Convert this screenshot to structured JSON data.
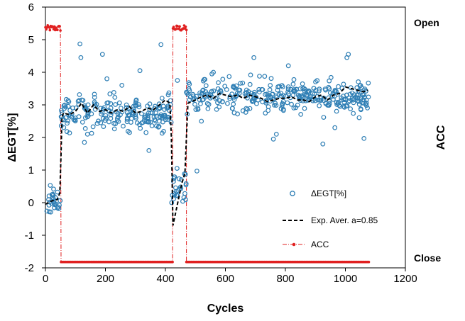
{
  "chart_data": {
    "type": "scatter",
    "xlabel": "Cycles",
    "ylabel": "ΔEGT[%]",
    "right_axis_label": "ACC",
    "right_axis_ticks": {
      "top": "Open",
      "bottom": "Close"
    },
    "xlim": [
      0,
      1200
    ],
    "ylim": [
      -2,
      6
    ],
    "x_ticks": [
      0,
      200,
      400,
      600,
      800,
      1000,
      1200
    ],
    "y_ticks": [
      6,
      5,
      4,
      3,
      2,
      1,
      0,
      -1,
      -2
    ],
    "grid": false,
    "legend_position": "lower-right",
    "colors": {
      "scatter": "#2f7fb5",
      "average": "#000000",
      "acc": "#e02020"
    },
    "series": [
      {
        "name": "ΔEGT[%]",
        "style": "markers",
        "segments": [
          {
            "x_range": [
              0,
              50
            ],
            "y_mean": 0.05,
            "spread": 0.35
          },
          {
            "x_range": [
              50,
              60
            ],
            "y_mean": 2.6,
            "spread": 0.25
          },
          {
            "x_range": [
              60,
              420
            ],
            "y_mean": 2.75,
            "spread": 0.45
          },
          {
            "x_range": [
              420,
              470
            ],
            "y_mean": 0.5,
            "spread": 0.55
          },
          {
            "x_range": [
              470,
              1080
            ],
            "y_mean": 3.25,
            "spread": 0.42
          }
        ],
        "outliers": [
          [
            115,
            4.87
          ],
          [
            118,
            4.45
          ],
          [
            190,
            4.55
          ],
          [
            205,
            3.8
          ],
          [
            255,
            3.6
          ],
          [
            315,
            4.05
          ],
          [
            385,
            4.85
          ],
          [
            345,
            1.6
          ],
          [
            130,
            1.85
          ],
          [
            140,
            2.1
          ],
          [
            695,
            4.45
          ],
          [
            810,
            4.2
          ],
          [
            1005,
            4.45
          ],
          [
            1010,
            4.55
          ],
          [
            1062,
            1.97
          ],
          [
            505,
            0.97
          ],
          [
            520,
            2.5
          ],
          [
            560,
            4.0
          ],
          [
            760,
            1.95
          ],
          [
            965,
            2.3
          ],
          [
            925,
            1.8
          ],
          [
            770,
            2.1
          ],
          [
            440,
            3.75
          ],
          [
            555,
            3.95
          ]
        ]
      },
      {
        "name": "Exp. Aver. a=0.85",
        "style": "dashed",
        "points": [
          [
            0,
            -0.05
          ],
          [
            20,
            0.05
          ],
          [
            40,
            0.1
          ],
          [
            48,
            0.3
          ],
          [
            52,
            1.5
          ],
          [
            55,
            2.6
          ],
          [
            60,
            2.75
          ],
          [
            80,
            2.7
          ],
          [
            100,
            2.8
          ],
          [
            120,
            3.05
          ],
          [
            140,
            2.75
          ],
          [
            160,
            3.0
          ],
          [
            180,
            2.8
          ],
          [
            200,
            2.85
          ],
          [
            220,
            2.75
          ],
          [
            240,
            2.85
          ],
          [
            260,
            2.8
          ],
          [
            280,
            2.95
          ],
          [
            300,
            2.75
          ],
          [
            320,
            2.8
          ],
          [
            340,
            2.9
          ],
          [
            360,
            2.85
          ],
          [
            380,
            3.0
          ],
          [
            400,
            3.15
          ],
          [
            415,
            3.05
          ],
          [
            420,
            2.0
          ],
          [
            425,
            -0.7
          ],
          [
            440,
            -0.05
          ],
          [
            455,
            0.6
          ],
          [
            465,
            0.9
          ],
          [
            470,
            2.0
          ],
          [
            475,
            3.05
          ],
          [
            500,
            3.15
          ],
          [
            520,
            3.25
          ],
          [
            540,
            3.3
          ],
          [
            560,
            3.2
          ],
          [
            580,
            3.35
          ],
          [
            600,
            3.3
          ],
          [
            620,
            3.25
          ],
          [
            640,
            3.3
          ],
          [
            660,
            3.2
          ],
          [
            680,
            3.3
          ],
          [
            700,
            3.25
          ],
          [
            720,
            3.2
          ],
          [
            740,
            3.1
          ],
          [
            760,
            3.15
          ],
          [
            780,
            3.2
          ],
          [
            800,
            3.2
          ],
          [
            820,
            3.25
          ],
          [
            840,
            3.15
          ],
          [
            860,
            3.15
          ],
          [
            880,
            3.1
          ],
          [
            900,
            3.25
          ],
          [
            920,
            3.3
          ],
          [
            940,
            3.15
          ],
          [
            960,
            3.3
          ],
          [
            980,
            3.35
          ],
          [
            1000,
            3.55
          ],
          [
            1020,
            3.5
          ],
          [
            1040,
            3.45
          ],
          [
            1060,
            3.4
          ],
          [
            1075,
            3.45
          ]
        ]
      },
      {
        "name": "ACC",
        "style": "dash-dot-markers",
        "open_value": 5.35,
        "close_value": -1.82,
        "open_intervals": [
          [
            0,
            52
          ],
          [
            425,
            470
          ]
        ],
        "close_intervals": [
          [
            52,
            425
          ],
          [
            470,
            1080
          ]
        ]
      }
    ]
  }
}
